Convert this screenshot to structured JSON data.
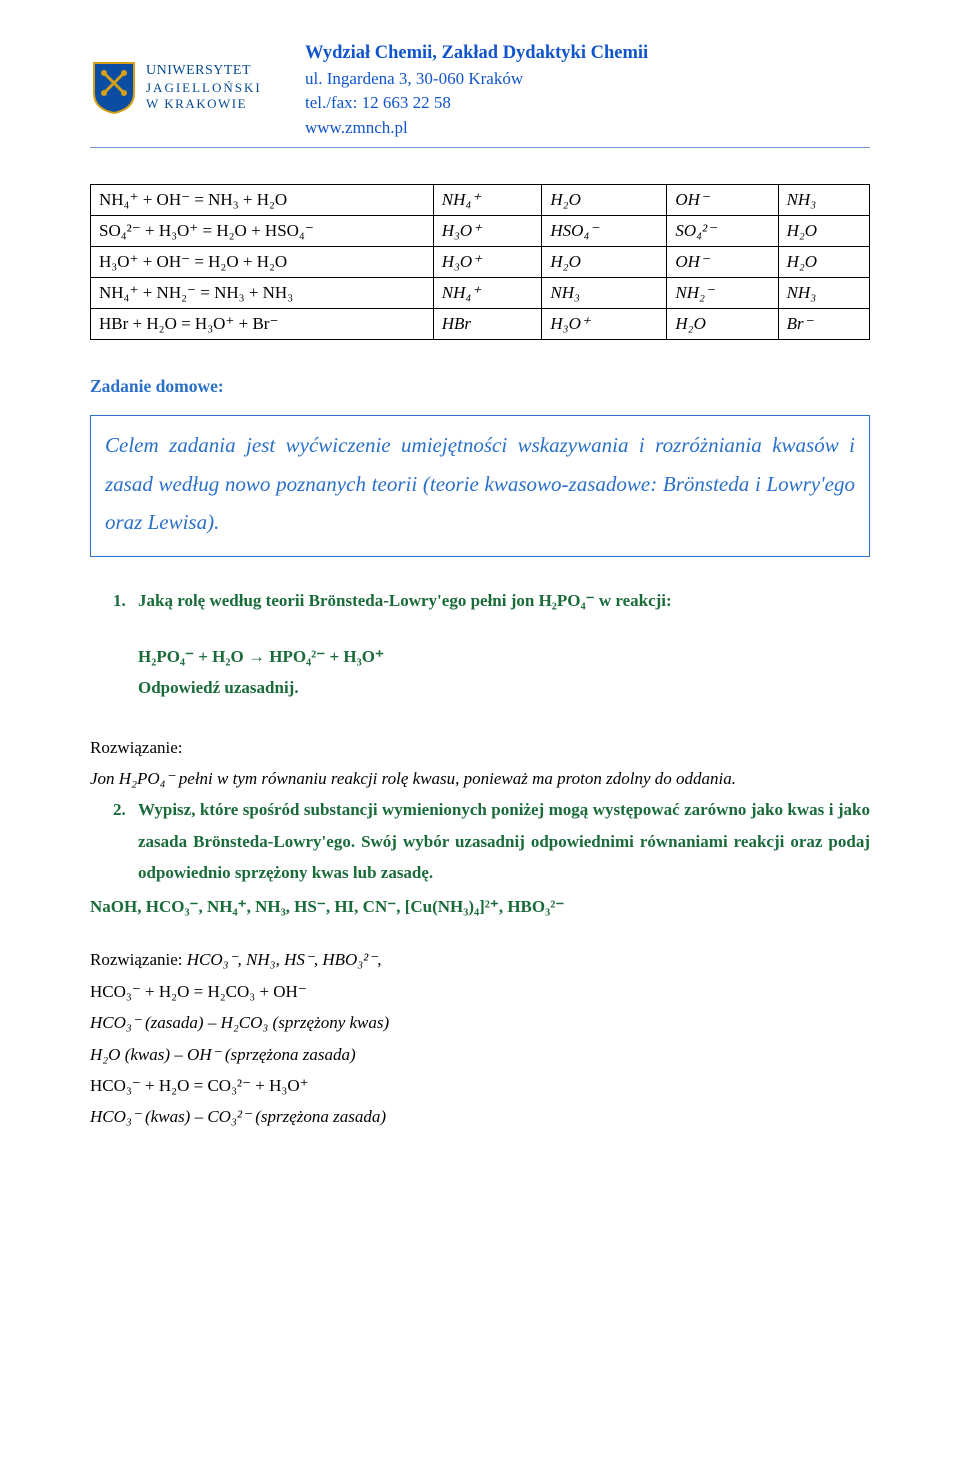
{
  "header": {
    "logo_text_1": "UNIWERSYTET",
    "logo_text_2": "JAGIELLOŃSKI",
    "logo_text_3": "W KRAKOWIE",
    "dept": "Wydział Chemii, Zakład Dydaktyki Chemii",
    "addr": "ul. Ingardena 3, 30-060 Kraków",
    "phone": "tel./fax: 12 663 22 58",
    "web": "www.zmnch.pl"
  },
  "table": {
    "rows": [
      [
        "NH₄⁺ + OH⁻ = NH₃ + H₂O",
        "NH₄⁺",
        "H₂O",
        "OH⁻",
        "NH₃"
      ],
      [
        "SO₄²⁻ + H₃O⁺ = H₂O + HSO₄⁻",
        "H₃O⁺",
        "HSO₄⁻",
        "SO₄²⁻",
        "H₂O"
      ],
      [
        "H₃O⁺ + OH⁻ = H₂O + H₂O",
        "H₃O⁺",
        "H₂O",
        "OH⁻",
        "H₂O"
      ],
      [
        "NH₄⁺ + NH₂⁻ = NH₃ + NH₃",
        "NH₄⁺",
        "NH₃",
        "NH₂⁻",
        "NH₃"
      ],
      [
        "HBr + H₂O = H₃O⁺ + Br⁻",
        "HBr",
        "H₃O⁺",
        "H₂O",
        "Br⁻"
      ]
    ]
  },
  "homework_heading": "Zadanie domowe:",
  "boxed_text": "Celem zadania jest wyćwiczenie umiejętności wskazywania i rozróżniania kwasów i zasad według nowo poznanych teorii (teorie kwasowo-zasadowe: Brönsteda i Lowry'ego oraz Lewisa).",
  "task1": "Jaką rolę według teorii Brönsteda-Lowry'ego pełni jon H₂PO₄⁻ w reakcji:",
  "task1_eq": "H₂PO₄⁻ + H₂O → HPO₄²⁻ + H₃O⁺",
  "task1_note": "Odpowiedź uzasadnij.",
  "sol_label": "Rozwiązanie:",
  "sol1_body": "Jon H₂PO₄⁻ pełni w tym równaniu reakcji rolę kwasu, ponieważ ma proton zdolny do oddania.",
  "task2": "Wypisz, które spośród substancji wymienionych poniżej mogą występować zarówno jako kwas i jako zasada Brönsteda-Lowry'ego. Swój wybór uzasadnij odpowiednimi równaniami reakcji oraz podaj odpowiednio sprzężony kwas lub zasadę.",
  "task2_list": "NaOH, HCO₃⁻, NH₄⁺, NH₃, HS⁻, HI, CN⁻, [Cu(NH₃)₄]²⁺, HBO₃²⁻",
  "sol2_head": "HCO₃⁻, NH₃, HS⁻, HBO₃²⁻,",
  "sol2_lines": [
    "HCO₃⁻ + H₂O = H₂CO₃ + OH⁻",
    "HCO₃⁻ (zasada) – H₂CO₃ (sprzężony kwas)",
    "H₂O (kwas) – OH⁻ (sprzężona zasada)",
    "HCO₃⁻ + H₂O = CO₃²⁻ + H₃O⁺",
    "HCO₃⁻ (kwas) – CO₃²⁻ (sprzężona zasada)"
  ]
}
